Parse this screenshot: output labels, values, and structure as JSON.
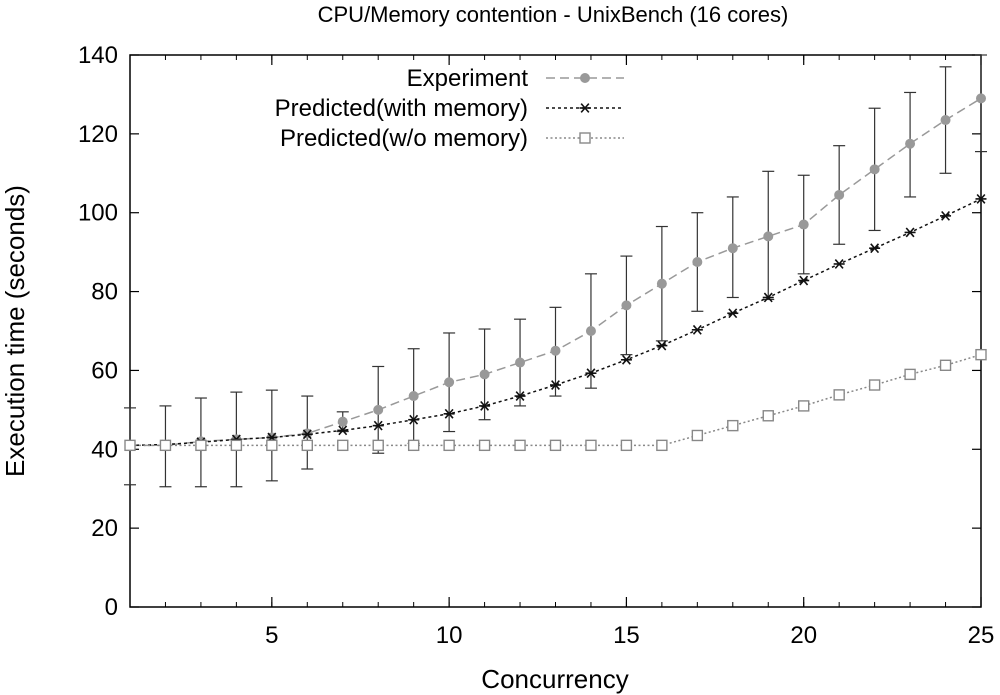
{
  "chart_data": {
    "type": "line",
    "title": "CPU/Memory contention - UnixBench (16 cores)",
    "xlabel": "Concurrency",
    "ylabel": "Execution time (seconds)",
    "xlim": [
      1,
      25
    ],
    "ylim": [
      0,
      140
    ],
    "xticks": [
      5,
      10,
      15,
      20,
      25
    ],
    "yticks": [
      0,
      20,
      40,
      60,
      80,
      100,
      120,
      140
    ],
    "grid": false,
    "legend_position": "top-left",
    "series": [
      {
        "name": "Experiment",
        "color": "#999999",
        "marker": "circle",
        "dash": "dashed",
        "x": [
          1,
          2,
          3,
          4,
          5,
          6,
          7,
          8,
          9,
          10,
          11,
          12,
          13,
          14,
          15,
          16,
          17,
          18,
          19,
          20,
          21,
          22,
          23,
          24,
          25
        ],
        "y": [
          41,
          41,
          42,
          42.5,
          43,
          44,
          47,
          50,
          53.5,
          57,
          59,
          62,
          65,
          70,
          76.5,
          82,
          87.5,
          91,
          94,
          97,
          104.5,
          111,
          117.5,
          123.5,
          129
        ],
        "err_low": [
          31,
          30.5,
          30.5,
          30.5,
          32,
          35,
          44.5,
          39,
          41.5,
          44.5,
          47.5,
          51,
          53.5,
          55.5,
          64,
          67.5,
          75,
          78.5,
          78,
          84.5,
          92,
          95.5,
          104,
          110,
          115.5
        ],
        "err_high": [
          50.5,
          51,
          53,
          54.5,
          55,
          53.5,
          49.5,
          61,
          65.5,
          69.5,
          70.5,
          73,
          76,
          84.5,
          89,
          96.5,
          100,
          104,
          110.5,
          109.5,
          117,
          126.5,
          130.5,
          137,
          140
        ]
      },
      {
        "name": "Predicted(with memory)",
        "color": "#111111",
        "marker": "asterisk",
        "dash": "dotted-dense",
        "x": [
          1,
          2,
          3,
          4,
          5,
          6,
          7,
          8,
          9,
          10,
          11,
          12,
          13,
          14,
          15,
          16,
          17,
          18,
          19,
          20,
          21,
          22,
          23,
          24,
          25
        ],
        "y": [
          41,
          41.2,
          41.8,
          42.5,
          43,
          43.8,
          44.8,
          46,
          47.5,
          49,
          51,
          53.5,
          56.3,
          59.3,
          62.7,
          66.3,
          70.3,
          74.5,
          78.5,
          82.8,
          87,
          91,
          95,
          99.2,
          103.5
        ]
      },
      {
        "name": "Predicted(w/o memory)",
        "color": "#888888",
        "marker": "square",
        "dash": "dotted",
        "x": [
          1,
          2,
          3,
          4,
          5,
          6,
          7,
          8,
          9,
          10,
          11,
          12,
          13,
          14,
          15,
          16,
          17,
          18,
          19,
          20,
          21,
          22,
          23,
          24,
          25
        ],
        "y": [
          41,
          41,
          41,
          41,
          41,
          41,
          41,
          41,
          41,
          41,
          41,
          41,
          41,
          41,
          41,
          41,
          43.5,
          46,
          48.5,
          51,
          53.8,
          56.3,
          59,
          61.3,
          64
        ]
      }
    ]
  }
}
